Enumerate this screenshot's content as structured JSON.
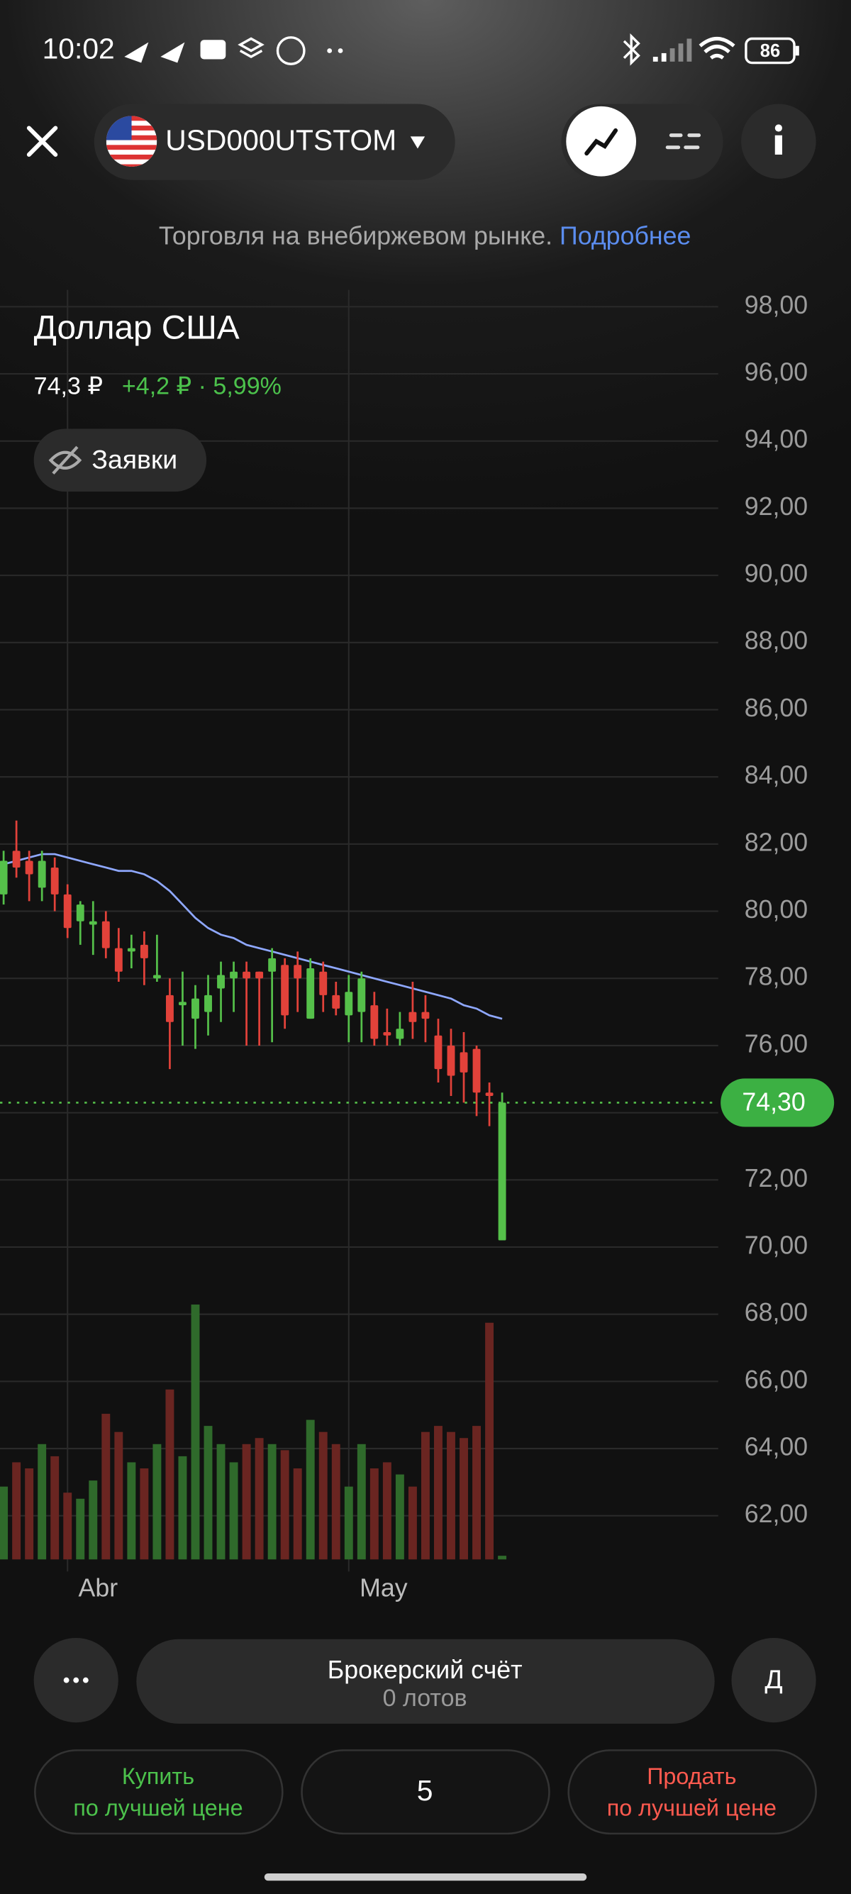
{
  "status_bar": {
    "time": "10:02",
    "battery": "86"
  },
  "header": {
    "ticker": "USD000UTSTOM"
  },
  "notice": {
    "text": "Торговля на внебиржевом рынке.",
    "link": "Подробнее"
  },
  "instrument": {
    "name": "Доллар США",
    "price": "74,3 ₽",
    "change": "+4,2 ₽ · 5,99%",
    "orders_button": "Заявки"
  },
  "chart": {
    "type": "candlestick",
    "categories": [
      null,
      null,
      null,
      null,
      null,
      "Abr",
      null,
      null,
      null,
      null,
      null,
      null,
      null,
      null,
      null,
      null,
      null,
      null,
      null,
      null,
      null,
      null,
      null,
      null,
      null,
      null,
      null,
      "May",
      null,
      null,
      null,
      null,
      null,
      null,
      null,
      null,
      null,
      null,
      null,
      null
    ],
    "open": [
      80.5,
      81.8,
      81.5,
      80.7,
      81.3,
      80.5,
      79.7,
      79.6,
      79.7,
      78.9,
      78.8,
      79.0,
      78.0,
      77.5,
      77.2,
      76.8,
      77.0,
      77.7,
      78.0,
      78.2,
      78.2,
      78.2,
      78.4,
      78.4,
      76.8,
      78.2,
      77.5,
      76.9,
      77.0,
      77.2,
      76.4,
      76.2,
      77.0,
      77.0,
      76.3,
      76.0,
      75.8,
      75.9,
      74.6,
      70.2
    ],
    "high": [
      81.8,
      82.7,
      81.8,
      81.8,
      81.6,
      80.8,
      80.3,
      80.3,
      80.0,
      79.5,
      79.3,
      79.4,
      79.3,
      78.0,
      78.2,
      77.8,
      78.1,
      78.5,
      78.5,
      78.5,
      78.2,
      78.9,
      78.6,
      78.8,
      78.6,
      78.5,
      77.9,
      78.1,
      78.2,
      77.6,
      77.1,
      77.0,
      77.9,
      77.5,
      76.8,
      76.5,
      76.4,
      76.0,
      74.9,
      74.6
    ],
    "low": [
      80.2,
      81.0,
      80.3,
      80.3,
      80.0,
      79.2,
      79.0,
      78.7,
      78.6,
      77.9,
      78.3,
      77.8,
      77.9,
      75.3,
      76.0,
      75.9,
      76.3,
      76.7,
      77.0,
      76.0,
      76.0,
      76.1,
      76.5,
      77.0,
      76.8,
      77.0,
      76.9,
      76.1,
      76.1,
      76.0,
      76.0,
      76.0,
      76.2,
      76.1,
      74.9,
      74.5,
      74.3,
      73.9,
      73.6,
      70.2
    ],
    "close": [
      81.5,
      81.3,
      81.1,
      81.5,
      80.5,
      79.5,
      80.2,
      79.7,
      78.9,
      78.2,
      78.9,
      78.6,
      78.1,
      76.7,
      77.3,
      77.4,
      77.5,
      78.1,
      78.2,
      78.0,
      78.0,
      78.6,
      76.9,
      78.0,
      78.3,
      77.5,
      77.1,
      77.6,
      78.0,
      76.2,
      76.3,
      76.5,
      76.7,
      76.8,
      75.3,
      75.1,
      75.2,
      74.6,
      74.5,
      74.3
    ],
    "volume": [
      60,
      80,
      75,
      95,
      85,
      55,
      50,
      65,
      120,
      105,
      80,
      75,
      95,
      140,
      85,
      210,
      110,
      95,
      80,
      95,
      100,
      95,
      90,
      75,
      115,
      105,
      95,
      60,
      95,
      75,
      80,
      70,
      60,
      105,
      110,
      105,
      100,
      110,
      195,
      3
    ],
    "ma": {
      "color": "#8fa8ff",
      "values": [
        81.4,
        81.5,
        81.6,
        81.7,
        81.7,
        81.6,
        81.5,
        81.4,
        81.3,
        81.2,
        81.2,
        81.1,
        80.9,
        80.6,
        80.2,
        79.8,
        79.5,
        79.3,
        79.2,
        79.0,
        78.9,
        78.8,
        78.7,
        78.6,
        78.5,
        78.4,
        78.3,
        78.2,
        78.1,
        78.0,
        77.9,
        77.8,
        77.7,
        77.6,
        77.5,
        77.4,
        77.2,
        77.1,
        76.9,
        76.8
      ]
    },
    "up_color": "#55c04a",
    "down_color": "#e2423a",
    "volume_up_color": "#2f6a2b",
    "volume_down_color": "#6a2521",
    "last_price": {
      "value": 74.3,
      "label": "74,30"
    },
    "ylim": [
      60.7,
      98.5
    ],
    "yticks": [
      {
        "value": 98,
        "label": "98,00"
      },
      {
        "value": 96,
        "label": "96,00"
      },
      {
        "value": 94,
        "label": "94,00"
      },
      {
        "value": 92,
        "label": "92,00"
      },
      {
        "value": 90,
        "label": "90,00"
      },
      {
        "value": 88,
        "label": "88,00"
      },
      {
        "value": 86,
        "label": "86,00"
      },
      {
        "value": 84,
        "label": "84,00"
      },
      {
        "value": 82,
        "label": "82,00"
      },
      {
        "value": 80,
        "label": "80,00"
      },
      {
        "value": 78,
        "label": "78,00"
      },
      {
        "value": 76,
        "label": "76,00"
      },
      {
        "value": 74,
        "label": "74,00"
      },
      {
        "value": 72,
        "label": "72,00"
      },
      {
        "value": 70,
        "label": "70,00"
      },
      {
        "value": 68,
        "label": "68,00"
      },
      {
        "value": 66,
        "label": "66,00"
      },
      {
        "value": 64,
        "label": "64,00"
      },
      {
        "value": 62,
        "label": "62,00"
      }
    ],
    "grid": true
  },
  "footer": {
    "account": "Брокерский счёт",
    "lots": "0 лотов",
    "account_letter": "Д",
    "buy": [
      "Купить",
      "по лучшей цене"
    ],
    "quantity": "5",
    "sell": [
      "Продать",
      "по лучшей цене"
    ]
  }
}
